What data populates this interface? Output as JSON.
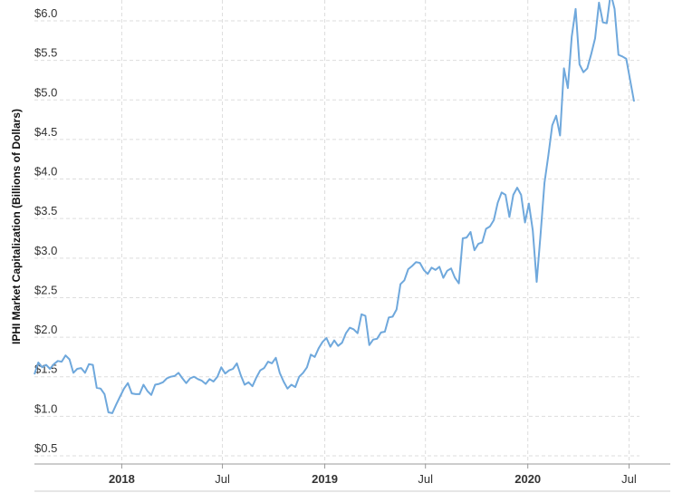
{
  "chart_data": {
    "type": "line",
    "title": "",
    "xlabel": "",
    "ylabel": "IPHI Market Capitalization (Billions of Dollars)",
    "ylim": [
      0.4,
      6.3
    ],
    "grid": true,
    "line_color": "#6fa8dc",
    "y_ticks": [
      {
        "value": 0.5,
        "label": "$0.5"
      },
      {
        "value": 1.0,
        "label": "$1.0"
      },
      {
        "value": 1.5,
        "label": "$1.5"
      },
      {
        "value": 2.0,
        "label": "$2.0"
      },
      {
        "value": 2.5,
        "label": "$2.5"
      },
      {
        "value": 3.0,
        "label": "$3.0"
      },
      {
        "value": 3.5,
        "label": "$3.5"
      },
      {
        "value": 4.0,
        "label": "$4.0"
      },
      {
        "value": 4.5,
        "label": "$4.5"
      },
      {
        "value": 5.0,
        "label": "$5.0"
      },
      {
        "value": 5.5,
        "label": "$5.5"
      },
      {
        "value": 6.0,
        "label": "$6.0"
      }
    ],
    "x_ticks": [
      {
        "date": "2018-01-01",
        "label": "2018",
        "bold": true
      },
      {
        "date": "2018-07-01",
        "label": "Jul",
        "bold": false
      },
      {
        "date": "2019-01-01",
        "label": "2019",
        "bold": true
      },
      {
        "date": "2019-07-01",
        "label": "Jul",
        "bold": false
      },
      {
        "date": "2020-01-01",
        "label": "2020",
        "bold": true
      },
      {
        "date": "2020-07-01",
        "label": "Jul",
        "bold": false
      }
    ],
    "series": [
      {
        "name": "",
        "points": [
          [
            "2017-07-28",
            1.53
          ],
          [
            "2017-08-04",
            1.68
          ],
          [
            "2017-08-11",
            1.62
          ],
          [
            "2017-08-18",
            1.65
          ],
          [
            "2017-08-25",
            1.6
          ],
          [
            "2017-09-01",
            1.66
          ],
          [
            "2017-09-08",
            1.7
          ],
          [
            "2017-09-15",
            1.69
          ],
          [
            "2017-09-22",
            1.77
          ],
          [
            "2017-09-29",
            1.72
          ],
          [
            "2017-10-06",
            1.55
          ],
          [
            "2017-10-13",
            1.6
          ],
          [
            "2017-10-20",
            1.61
          ],
          [
            "2017-10-27",
            1.55
          ],
          [
            "2017-11-03",
            1.66
          ],
          [
            "2017-11-10",
            1.65
          ],
          [
            "2017-11-17",
            1.36
          ],
          [
            "2017-11-24",
            1.35
          ],
          [
            "2017-12-01",
            1.28
          ],
          [
            "2017-12-08",
            1.05
          ],
          [
            "2017-12-15",
            1.04
          ],
          [
            "2017-12-22",
            1.15
          ],
          [
            "2017-12-29",
            1.25
          ],
          [
            "2018-01-05",
            1.35
          ],
          [
            "2018-01-12",
            1.42
          ],
          [
            "2018-01-19",
            1.29
          ],
          [
            "2018-01-26",
            1.28
          ],
          [
            "2018-02-02",
            1.28
          ],
          [
            "2018-02-09",
            1.4
          ],
          [
            "2018-02-16",
            1.32
          ],
          [
            "2018-02-23",
            1.27
          ],
          [
            "2018-03-02",
            1.4
          ],
          [
            "2018-03-09",
            1.41
          ],
          [
            "2018-03-16",
            1.43
          ],
          [
            "2018-03-23",
            1.48
          ],
          [
            "2018-03-30",
            1.5
          ],
          [
            "2018-04-06",
            1.51
          ],
          [
            "2018-04-13",
            1.55
          ],
          [
            "2018-04-20",
            1.48
          ],
          [
            "2018-04-27",
            1.42
          ],
          [
            "2018-05-04",
            1.48
          ],
          [
            "2018-05-11",
            1.5
          ],
          [
            "2018-05-18",
            1.47
          ],
          [
            "2018-05-25",
            1.45
          ],
          [
            "2018-06-01",
            1.41
          ],
          [
            "2018-06-08",
            1.47
          ],
          [
            "2018-06-15",
            1.44
          ],
          [
            "2018-06-22",
            1.5
          ],
          [
            "2018-06-29",
            1.62
          ],
          [
            "2018-07-06",
            1.54
          ],
          [
            "2018-07-13",
            1.58
          ],
          [
            "2018-07-20",
            1.6
          ],
          [
            "2018-07-27",
            1.67
          ],
          [
            "2018-08-03",
            1.52
          ],
          [
            "2018-08-10",
            1.4
          ],
          [
            "2018-08-17",
            1.43
          ],
          [
            "2018-08-24",
            1.38
          ],
          [
            "2018-08-31",
            1.49
          ],
          [
            "2018-09-07",
            1.58
          ],
          [
            "2018-09-14",
            1.61
          ],
          [
            "2018-09-21",
            1.69
          ],
          [
            "2018-09-28",
            1.67
          ],
          [
            "2018-10-05",
            1.74
          ],
          [
            "2018-10-12",
            1.55
          ],
          [
            "2018-10-19",
            1.44
          ],
          [
            "2018-10-26",
            1.35
          ],
          [
            "2018-11-02",
            1.4
          ],
          [
            "2018-11-09",
            1.37
          ],
          [
            "2018-11-16",
            1.5
          ],
          [
            "2018-11-23",
            1.55
          ],
          [
            "2018-11-30",
            1.62
          ],
          [
            "2018-12-07",
            1.78
          ],
          [
            "2018-12-14",
            1.75
          ],
          [
            "2018-12-21",
            1.86
          ],
          [
            "2018-12-28",
            1.94
          ],
          [
            "2019-01-04",
            1.99
          ],
          [
            "2019-01-11",
            1.88
          ],
          [
            "2019-01-18",
            1.96
          ],
          [
            "2019-01-25",
            1.89
          ],
          [
            "2019-02-01",
            1.93
          ],
          [
            "2019-02-08",
            2.05
          ],
          [
            "2019-02-15",
            2.12
          ],
          [
            "2019-02-22",
            2.1
          ],
          [
            "2019-03-01",
            2.05
          ],
          [
            "2019-03-08",
            2.29
          ],
          [
            "2019-03-15",
            2.27
          ],
          [
            "2019-03-22",
            1.9
          ],
          [
            "2019-03-29",
            1.97
          ],
          [
            "2019-04-05",
            1.98
          ],
          [
            "2019-04-12",
            2.06
          ],
          [
            "2019-04-19",
            2.07
          ],
          [
            "2019-04-26",
            2.25
          ],
          [
            "2019-05-03",
            2.26
          ],
          [
            "2019-05-10",
            2.35
          ],
          [
            "2019-05-17",
            2.67
          ],
          [
            "2019-05-24",
            2.72
          ],
          [
            "2019-05-31",
            2.86
          ],
          [
            "2019-06-07",
            2.9
          ],
          [
            "2019-06-14",
            2.95
          ],
          [
            "2019-06-21",
            2.94
          ],
          [
            "2019-06-28",
            2.85
          ],
          [
            "2019-07-05",
            2.8
          ],
          [
            "2019-07-12",
            2.88
          ],
          [
            "2019-07-19",
            2.85
          ],
          [
            "2019-07-26",
            2.89
          ],
          [
            "2019-08-02",
            2.75
          ],
          [
            "2019-08-09",
            2.84
          ],
          [
            "2019-08-16",
            2.87
          ],
          [
            "2019-08-23",
            2.75
          ],
          [
            "2019-08-30",
            2.68
          ],
          [
            "2019-09-06",
            3.25
          ],
          [
            "2019-09-13",
            3.26
          ],
          [
            "2019-09-20",
            3.33
          ],
          [
            "2019-09-27",
            3.1
          ],
          [
            "2019-10-04",
            3.18
          ],
          [
            "2019-10-11",
            3.2
          ],
          [
            "2019-10-18",
            3.37
          ],
          [
            "2019-10-25",
            3.4
          ],
          [
            "2019-11-01",
            3.48
          ],
          [
            "2019-11-08",
            3.7
          ],
          [
            "2019-11-15",
            3.83
          ],
          [
            "2019-11-22",
            3.8
          ],
          [
            "2019-11-29",
            3.52
          ],
          [
            "2019-12-06",
            3.8
          ],
          [
            "2019-12-13",
            3.89
          ],
          [
            "2019-12-20",
            3.8
          ],
          [
            "2019-12-27",
            3.45
          ],
          [
            "2020-01-03",
            3.69
          ],
          [
            "2020-01-10",
            3.35
          ],
          [
            "2020-01-17",
            2.7
          ],
          [
            "2020-01-24",
            3.3
          ],
          [
            "2020-01-31",
            3.95
          ],
          [
            "2020-02-07",
            4.3
          ],
          [
            "2020-02-14",
            4.68
          ],
          [
            "2020-02-21",
            4.8
          ],
          [
            "2020-02-28",
            4.55
          ],
          [
            "2020-03-06",
            5.4
          ],
          [
            "2020-03-13",
            5.15
          ],
          [
            "2020-03-20",
            5.8
          ],
          [
            "2020-03-27",
            6.15
          ],
          [
            "2020-04-03",
            5.45
          ],
          [
            "2020-04-10",
            5.35
          ],
          [
            "2020-04-17",
            5.4
          ],
          [
            "2020-04-24",
            5.58
          ],
          [
            "2020-05-01",
            5.78
          ],
          [
            "2020-05-08",
            6.23
          ],
          [
            "2020-05-15",
            5.98
          ],
          [
            "2020-05-22",
            5.97
          ],
          [
            "2020-05-29",
            6.35
          ],
          [
            "2020-06-05",
            6.15
          ],
          [
            "2020-06-12",
            5.57
          ],
          [
            "2020-06-19",
            5.55
          ],
          [
            "2020-06-26",
            5.52
          ],
          [
            "2020-07-03",
            5.25
          ],
          [
            "2020-07-10",
            4.98
          ]
        ]
      }
    ]
  }
}
